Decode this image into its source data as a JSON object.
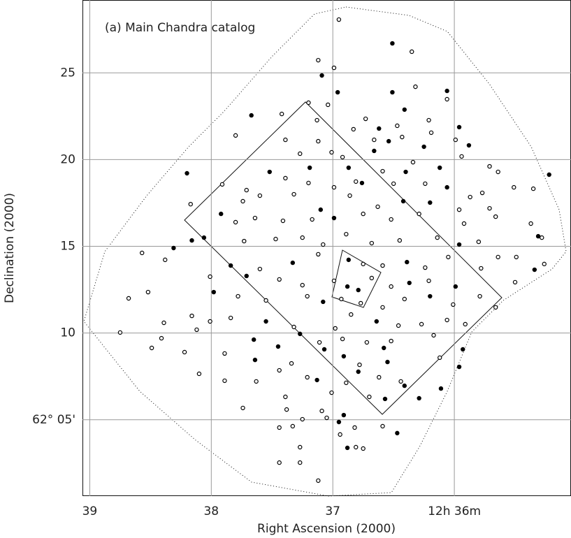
{
  "chart_data": {
    "type": "scatter",
    "annotation": "(a) Main Chandra catalog",
    "x_label": "Right Ascension (2000)",
    "y_label": "Declination (2000)",
    "xlim": [
      39.06,
      35.04
    ],
    "ylim": [
      0.6,
      29.2
    ],
    "xticks": [
      39,
      38,
      37,
      {
        "value": 36,
        "label": "12h 36m"
      }
    ],
    "yticks": [
      {
        "value": 5,
        "label": "62° 05'"
      },
      10,
      15,
      20,
      25
    ],
    "grid": true,
    "series": [
      {
        "color": "#000000",
        "marker": "open",
        "x": [
          36.95,
          36.35,
          37.12,
          36.99,
          36.32,
          36.06,
          37.2,
          37.04,
          37.42,
          36.73,
          37.13,
          36.21,
          36.83,
          36.47,
          36.19,
          37.8,
          37.39,
          37.12,
          36.66,
          36.43,
          35.99,
          37.27,
          37.01,
          36.92,
          36.34,
          35.94,
          35.71,
          35.64,
          36.59,
          37.91,
          37.71,
          37.39,
          37.2,
          36.99,
          36.81,
          36.5,
          36.24,
          35.87,
          35.77,
          35.51,
          35.35,
          38.17,
          37.74,
          37.6,
          37.32,
          36.86,
          36.63,
          35.96,
          35.71,
          35.66,
          37.8,
          37.64,
          37.41,
          37.17,
          36.75,
          36.52,
          36.29,
          35.92,
          35.37,
          37.73,
          37.47,
          37.25,
          37.08,
          36.89,
          36.68,
          36.45,
          36.14,
          35.8,
          35.28,
          38.57,
          38.38,
          37.6,
          37.12,
          36.75,
          36.59,
          36.24,
          36.05,
          35.78,
          35.64,
          35.49,
          35.26,
          38.01,
          37.44,
          37.25,
          36.99,
          36.68,
          36.52,
          36.21,
          35.5,
          38.68,
          38.52,
          37.78,
          37.55,
          37.21,
          36.93,
          36.77,
          36.59,
          36.41,
          36.01,
          35.79,
          35.66,
          38.16,
          38.01,
          37.84,
          37.32,
          36.98,
          36.85,
          36.46,
          36.27,
          36.06,
          35.91,
          38.75,
          38.39,
          38.12,
          37.11,
          36.92,
          36.72,
          36.52,
          36.17,
          38.41,
          38.49,
          38.22,
          37.89,
          37.34,
          36.78,
          36.12,
          38.1,
          37.44,
          37.21,
          36.62,
          37.89,
          37.63,
          36.89,
          36.44,
          37.39,
          37.01,
          36.7,
          37.74,
          37.38,
          37.09,
          37.25,
          37.05,
          37.44,
          37.33,
          36.82,
          36.59,
          36.94,
          37.27,
          36.81,
          36.75,
          37.44,
          37.27,
          37.12
        ],
        "values": [
          28.07,
          26.22,
          25.73,
          25.29,
          24.2,
          23.48,
          23.28,
          23.16,
          22.63,
          22.35,
          22.27,
          22.27,
          21.75,
          21.95,
          21.55,
          21.39,
          21.14,
          21.06,
          21.14,
          21.3,
          21.14,
          20.34,
          20.42,
          20.14,
          19.85,
          20.18,
          19.61,
          19.29,
          19.33,
          18.57,
          18.24,
          18.93,
          18.65,
          18.4,
          18.73,
          18.61,
          18.61,
          17.84,
          18.08,
          18.4,
          18.32,
          17.43,
          17.6,
          17.92,
          18.0,
          17.92,
          17.28,
          17.11,
          17.19,
          16.71,
          16.39,
          16.63,
          16.47,
          16.55,
          16.87,
          16.55,
          16.87,
          16.31,
          16.31,
          15.3,
          15.42,
          15.5,
          15.1,
          15.7,
          15.18,
          15.34,
          15.5,
          15.26,
          15.5,
          14.62,
          14.22,
          13.69,
          14.54,
          13.98,
          13.89,
          13.77,
          14.38,
          13.73,
          14.38,
          14.38,
          13.98,
          13.25,
          13.09,
          12.76,
          13.01,
          13.17,
          12.68,
          13.01,
          12.93,
          12.0,
          12.36,
          12.12,
          11.88,
          12.12,
          11.96,
          11.72,
          11.48,
          11.96,
          11.64,
          12.12,
          11.48,
          10.99,
          10.67,
          10.87,
          10.35,
          10.27,
          11.07,
          10.43,
          10.51,
          10.75,
          10.51,
          10.03,
          10.59,
          10.19,
          9.46,
          9.66,
          9.46,
          9.54,
          9.87,
          9.7,
          9.14,
          8.9,
          8.82,
          8.25,
          8.17,
          8.58,
          7.65,
          7.85,
          7.45,
          7.45,
          7.25,
          7.21,
          7.13,
          7.21,
          6.32,
          6.56,
          6.32,
          5.68,
          5.59,
          5.51,
          5.03,
          5.11,
          4.55,
          4.63,
          4.55,
          4.63,
          4.15,
          3.42,
          3.42,
          3.34,
          2.53,
          2.53,
          1.49
        ]
      },
      {
        "color": "#000000",
        "marker": "filled",
        "x": [
          36.51,
          37.09,
          36.96,
          36.51,
          36.06,
          37.67,
          36.41,
          35.96,
          36.62,
          36.54,
          36.25,
          35.88,
          38.2,
          36.66,
          36.12,
          37.52,
          37.19,
          36.87,
          36.4,
          36.76,
          36.06,
          35.22,
          37.1,
          36.42,
          36.2,
          37.92,
          36.99,
          38.16,
          38.06,
          35.96,
          35.31,
          38.31,
          37.84,
          37.33,
          36.87,
          36.39,
          35.34,
          37.71,
          36.88,
          36.79,
          36.37,
          35.99,
          37.98,
          37.08,
          36.2,
          37.55,
          36.64,
          37.27,
          37.65,
          37.45,
          37.07,
          36.58,
          35.93,
          37.64,
          36.91,
          36.55,
          35.96,
          36.79,
          37.13,
          36.41,
          36.11,
          36.57,
          36.29,
          36.91,
          36.95,
          36.47,
          36.88
        ],
        "values": [
          26.7,
          24.85,
          23.88,
          23.88,
          23.96,
          22.55,
          22.88,
          21.87,
          21.79,
          21.06,
          20.74,
          20.82,
          19.21,
          20.5,
          19.53,
          19.29,
          19.53,
          19.53,
          19.29,
          18.65,
          18.4,
          19.13,
          17.11,
          17.6,
          17.52,
          16.87,
          16.63,
          15.34,
          15.5,
          15.1,
          15.58,
          14.9,
          13.89,
          14.05,
          14.22,
          14.09,
          13.65,
          13.29,
          12.68,
          12.48,
          12.89,
          12.68,
          12.36,
          11.8,
          12.12,
          10.67,
          10.67,
          9.95,
          9.62,
          9.22,
          9.06,
          9.14,
          9.06,
          8.45,
          8.66,
          8.33,
          8.05,
          7.77,
          7.29,
          6.96,
          6.8,
          6.2,
          6.24,
          5.27,
          4.87,
          4.23,
          3.38
        ]
      }
    ]
  }
}
